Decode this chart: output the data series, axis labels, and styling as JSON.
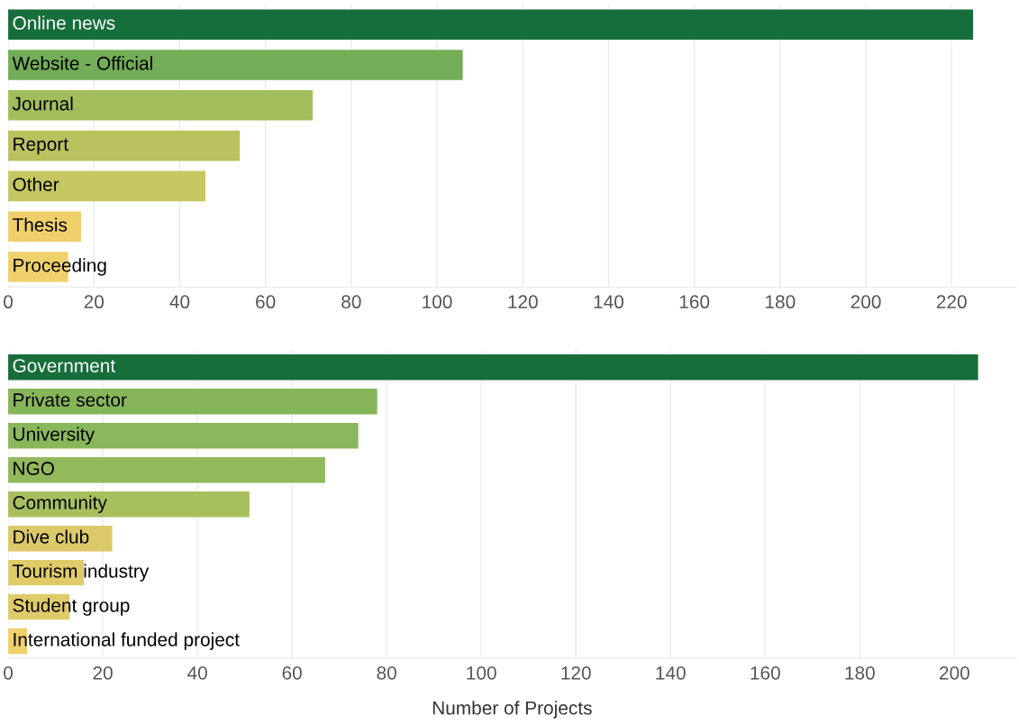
{
  "chart_data": [
    {
      "type": "bar",
      "orientation": "horizontal",
      "categories": [
        "Online news",
        "Website - Official",
        "Journal",
        "Report",
        "Other",
        "Thesis",
        "Proceeding"
      ],
      "values": [
        225,
        106,
        71,
        54,
        46,
        17,
        14
      ],
      "colors": [
        "#166e3a",
        "#72ad58",
        "#a3bd5c",
        "#b9c25e",
        "#c6c662",
        "#f0d06a",
        "#f0d06a"
      ],
      "xlim": [
        0,
        235
      ],
      "xticks": [
        0,
        20,
        40,
        60,
        80,
        100,
        120,
        140,
        160,
        180,
        200,
        220
      ],
      "grid": "x",
      "tick_labels": "x"
    },
    {
      "type": "bar",
      "orientation": "horizontal",
      "categories": [
        "Government",
        "Private sector",
        "University",
        "NGO",
        "Community",
        "Dive club",
        "Tourism industry",
        "Student group",
        "International funded project"
      ],
      "values": [
        205,
        78,
        74,
        67,
        51,
        22,
        16,
        13,
        4
      ],
      "colors": [
        "#176e3a",
        "#86b55a",
        "#89b75b",
        "#92b95c",
        "#a8bf5e",
        "#dcca6a",
        "#e0cb6a",
        "#e0cb6a",
        "#f0d06a"
      ],
      "xlim": [
        0,
        213
      ],
      "xticks": [
        0,
        20,
        40,
        60,
        80,
        100,
        120,
        140,
        160,
        180,
        200
      ],
      "grid": "x",
      "tick_labels": "x",
      "xlabel": "Number of Projects"
    }
  ]
}
